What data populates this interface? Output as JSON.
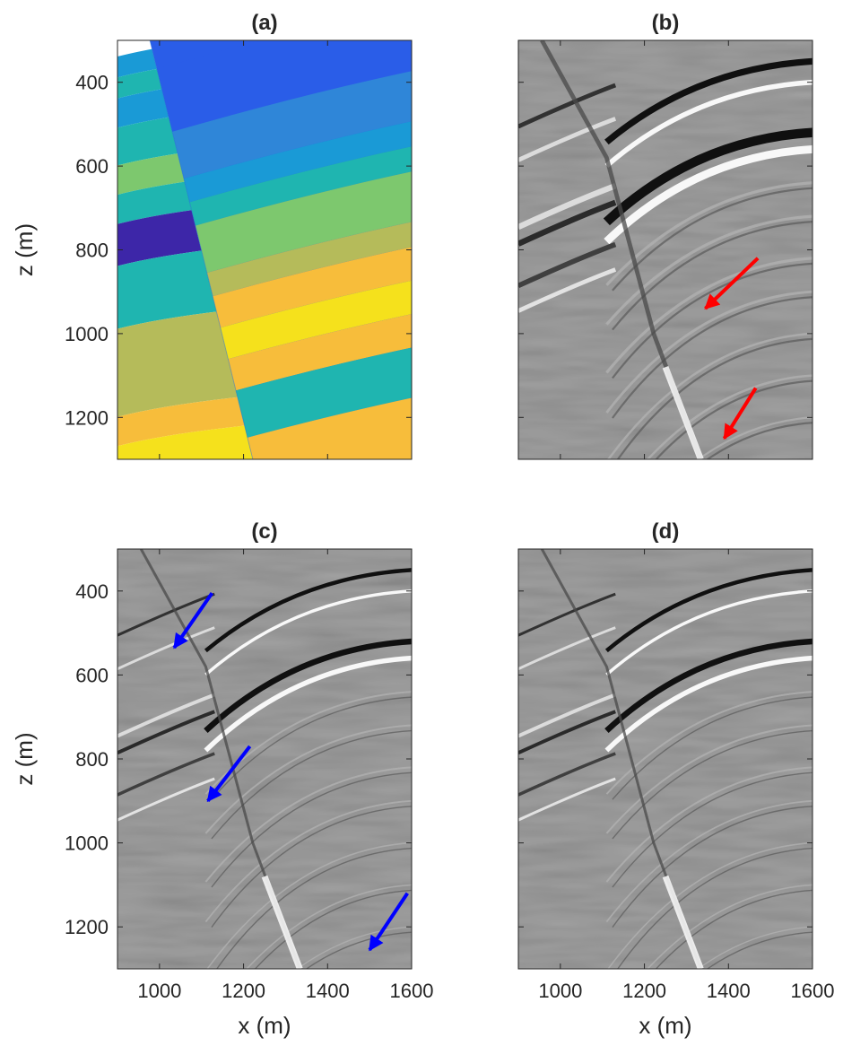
{
  "figure": {
    "panels": [
      {
        "id": "a",
        "title": "(a)",
        "kind": "velocity-model",
        "show_y_ticks": true,
        "show_x_ticks": false,
        "ylabel": "z (m)",
        "xlabel": "",
        "arrows": [],
        "arrow_color": ""
      },
      {
        "id": "b",
        "title": "(b)",
        "kind": "seismic-image-smooth",
        "show_y_ticks": false,
        "show_x_ticks": false,
        "ylabel": "",
        "xlabel": "",
        "arrows": [
          {
            "tail": [
              1470,
              820
            ],
            "head": [
              1345,
              940
            ]
          },
          {
            "tail": [
              1465,
              1130
            ],
            "head": [
              1390,
              1250
            ]
          }
        ],
        "arrow_color": "#ff0000"
      },
      {
        "id": "c",
        "title": "(c)",
        "kind": "seismic-image-sharp",
        "show_y_ticks": true,
        "show_x_ticks": true,
        "ylabel": "z (m)",
        "xlabel": "x (m)",
        "arrows": [
          {
            "tail": [
              1125,
              405
            ],
            "head": [
              1035,
              535
            ]
          },
          {
            "tail": [
              1215,
              770
            ],
            "head": [
              1115,
              900
            ]
          },
          {
            "tail": [
              1590,
              1120
            ],
            "head": [
              1500,
              1255
            ]
          }
        ],
        "arrow_color": "#0000ff"
      },
      {
        "id": "d",
        "title": "(d)",
        "kind": "seismic-image-sharp",
        "show_y_ticks": false,
        "show_x_ticks": true,
        "ylabel": "",
        "xlabel": "x (m)",
        "arrows": [],
        "arrow_color": ""
      }
    ],
    "x_ticks": [
      1000,
      1200,
      1400,
      1600
    ],
    "x_tick_labels": [
      "1000",
      "1200",
      "1400",
      "1600"
    ],
    "z_ticks": [
      400,
      600,
      800,
      1000,
      1200
    ],
    "z_tick_labels": [
      "400",
      "600",
      "800",
      "1000",
      "1200"
    ],
    "x_range": [
      900,
      1600
    ],
    "z_range": [
      300,
      1300
    ],
    "model_colormap": [
      "#3d26a8",
      "#2a5de8",
      "#1a9ad6",
      "#1fb5b0",
      "#7dc86e",
      "#b5bb5a",
      "#f7bd3b",
      "#f5e11c"
    ],
    "seismic_colormap": [
      "#000000",
      "#808080",
      "#ffffff"
    ]
  }
}
